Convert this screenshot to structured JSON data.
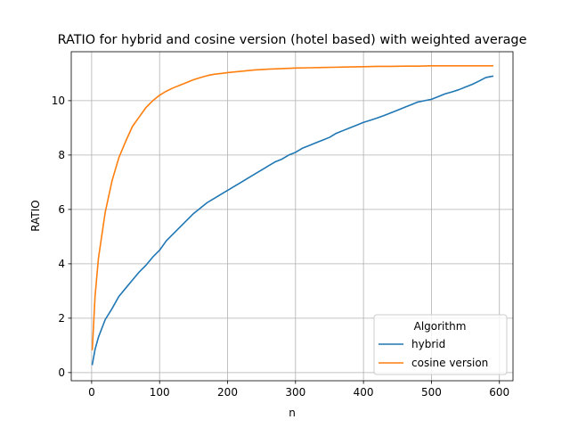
{
  "chart_data": {
    "type": "line",
    "title": "RATIO for hybrid and cosine version (hotel based) with weighted average",
    "xlabel": "n",
    "ylabel": "RATIO",
    "xlim": [
      -30,
      620
    ],
    "ylim": [
      -0.3,
      11.8
    ],
    "xticks": [
      0,
      100,
      200,
      300,
      400,
      500,
      600
    ],
    "yticks": [
      0,
      2,
      4,
      6,
      8,
      10
    ],
    "grid": true,
    "legend": {
      "title": "Algorithm",
      "placement": "lower-right"
    },
    "series": [
      {
        "name": "hybrid",
        "color": "#1f77b4",
        "x": [
          1,
          5,
          10,
          20,
          30,
          40,
          50,
          60,
          70,
          80,
          90,
          100,
          110,
          120,
          130,
          140,
          150,
          160,
          170,
          180,
          190,
          200,
          210,
          220,
          230,
          240,
          250,
          260,
          270,
          280,
          290,
          300,
          310,
          320,
          330,
          340,
          350,
          360,
          370,
          380,
          390,
          400,
          410,
          420,
          430,
          440,
          450,
          460,
          470,
          480,
          490,
          500,
          510,
          520,
          530,
          540,
          550,
          560,
          570,
          580,
          590
        ],
        "values": [
          0.3,
          0.85,
          1.3,
          1.95,
          2.35,
          2.8,
          3.1,
          3.4,
          3.7,
          3.95,
          4.25,
          4.5,
          4.85,
          5.1,
          5.35,
          5.6,
          5.85,
          6.05,
          6.25,
          6.4,
          6.55,
          6.7,
          6.85,
          7.0,
          7.15,
          7.3,
          7.45,
          7.6,
          7.75,
          7.85,
          8.0,
          8.1,
          8.25,
          8.35,
          8.45,
          8.55,
          8.65,
          8.8,
          8.9,
          9.0,
          9.1,
          9.2,
          9.28,
          9.36,
          9.45,
          9.55,
          9.65,
          9.75,
          9.85,
          9.95,
          10.0,
          10.05,
          10.15,
          10.25,
          10.32,
          10.4,
          10.5,
          10.6,
          10.72,
          10.85,
          10.9
        ]
      },
      {
        "name": "cosine version",
        "color": "#ff7f0e",
        "x": [
          1,
          5,
          10,
          20,
          30,
          40,
          50,
          60,
          70,
          80,
          90,
          100,
          110,
          120,
          130,
          140,
          150,
          160,
          170,
          180,
          190,
          200,
          220,
          240,
          260,
          280,
          300,
          320,
          340,
          360,
          380,
          400,
          420,
          440,
          460,
          480,
          500,
          520,
          540,
          560,
          580,
          590
        ],
        "values": [
          0.85,
          2.8,
          4.2,
          5.9,
          7.05,
          7.9,
          8.5,
          9.05,
          9.4,
          9.75,
          10.0,
          10.2,
          10.35,
          10.47,
          10.57,
          10.67,
          10.77,
          10.85,
          10.92,
          10.97,
          11.0,
          11.03,
          11.08,
          11.13,
          11.16,
          11.18,
          11.2,
          11.21,
          11.22,
          11.23,
          11.24,
          11.25,
          11.26,
          11.26,
          11.27,
          11.27,
          11.28,
          11.28,
          11.28,
          11.28,
          11.28,
          11.28
        ]
      }
    ]
  }
}
